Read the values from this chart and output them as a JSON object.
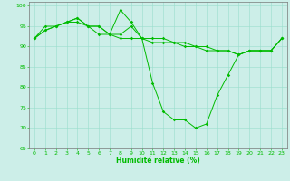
{
  "xlabel": "Humidité relative (%)",
  "background_color": "#cceee8",
  "grid_color": "#99ddcc",
  "line_color": "#00bb00",
  "xlim_min": -0.5,
  "xlim_max": 23.5,
  "ylim_min": 65,
  "ylim_max": 101,
  "yticks": [
    65,
    70,
    75,
    80,
    85,
    90,
    95,
    100
  ],
  "xticks": [
    0,
    1,
    2,
    3,
    4,
    5,
    6,
    7,
    8,
    9,
    10,
    11,
    12,
    13,
    14,
    15,
    16,
    17,
    18,
    19,
    20,
    21,
    22,
    23
  ],
  "line1": [
    92,
    94,
    95,
    96,
    97,
    95,
    95,
    93,
    99,
    96,
    92,
    81,
    74,
    72,
    72,
    70,
    71,
    78,
    83,
    88,
    89,
    89,
    89,
    92
  ],
  "line2": [
    92,
    94,
    95,
    96,
    97,
    95,
    95,
    93,
    92,
    92,
    92,
    91,
    91,
    91,
    90,
    90,
    90,
    89,
    89,
    88,
    89,
    89,
    89,
    92
  ],
  "line3": [
    92,
    95,
    95,
    96,
    96,
    95,
    93,
    93,
    93,
    95,
    92,
    92,
    92,
    91,
    91,
    90,
    89,
    89,
    89,
    88,
    89,
    89,
    89,
    92
  ],
  "xlabel_fontsize": 5.5,
  "tick_fontsize": 4.5,
  "linewidth": 0.7,
  "markersize": 1.8
}
